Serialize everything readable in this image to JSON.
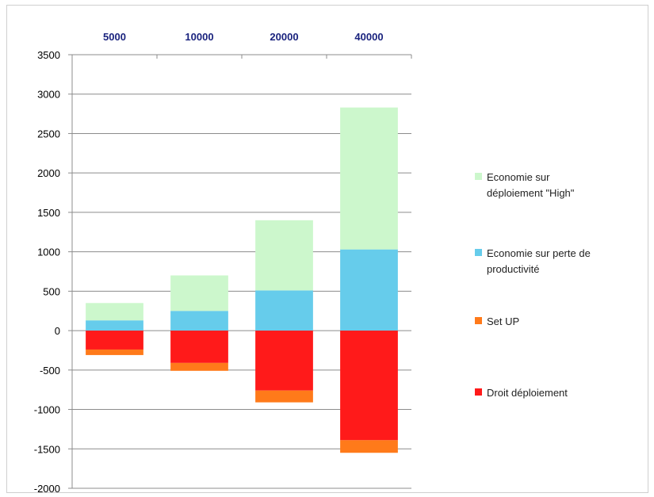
{
  "chart_data": {
    "type": "bar",
    "stacked": true,
    "categories": [
      "5000",
      "10000",
      "20000",
      "40000"
    ],
    "category_axis_position": "top",
    "ylim": [
      -2000,
      3500
    ],
    "yticks": [
      3500,
      3000,
      2500,
      2000,
      1500,
      1000,
      500,
      0,
      -500,
      -1000,
      -1500,
      -2000
    ],
    "grid": true,
    "legend_position": "right",
    "series": [
      {
        "name": "Economie sur déploiement \"High\"",
        "legend_lines": [
          "Economie sur",
          "déploiement \"High\""
        ],
        "color": "#ccf7cc",
        "values": [
          220,
          450,
          890,
          1800
        ]
      },
      {
        "name": "Economie sur perte de productivité",
        "legend_lines": [
          "Economie sur perte de",
          "productivité"
        ],
        "color": "#66cceb",
        "values": [
          130,
          250,
          510,
          1030
        ]
      },
      {
        "name": "Set UP",
        "legend_lines": [
          "Set UP"
        ],
        "color": "#ff7a1a",
        "values": [
          -70,
          -100,
          -150,
          -160
        ]
      },
      {
        "name": "Droit déploiement",
        "legend_lines": [
          "Droit déploiement"
        ],
        "color": "#ff1a1a",
        "values": [
          -240,
          -410,
          -760,
          -1390
        ]
      }
    ]
  }
}
